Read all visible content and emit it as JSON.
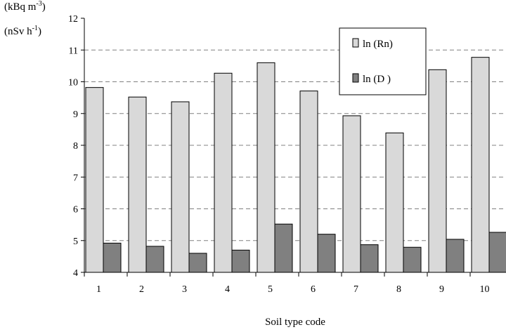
{
  "chart_data": {
    "type": "bar",
    "categories": [
      "1",
      "2",
      "3",
      "4",
      "5",
      "6",
      "7",
      "8",
      "9",
      "10"
    ],
    "series": [
      {
        "name": "ln (Rn)",
        "color": "#d9d9d9",
        "values": [
          9.82,
          9.52,
          9.37,
          10.27,
          10.6,
          9.71,
          8.93,
          8.39,
          10.38,
          10.77
        ]
      },
      {
        "name": "ln (D )",
        "color": "#808080",
        "values": [
          4.92,
          4.82,
          4.6,
          4.7,
          5.52,
          5.2,
          4.87,
          4.79,
          5.04,
          5.26
        ]
      }
    ],
    "ylim": [
      4,
      12
    ],
    "yticks": [
      4,
      5,
      6,
      7,
      8,
      9,
      10,
      11,
      12
    ],
    "ylabel_line1": {
      "text": "(kBq m",
      "sup": "-3",
      "after": ")"
    },
    "ylabel_line2": {
      "text": "(nSv h",
      "sup": "-1",
      "after": ")"
    },
    "xlabel": "Soil type code",
    "grid": "dashed horizontal",
    "legend_position": "top-right"
  }
}
